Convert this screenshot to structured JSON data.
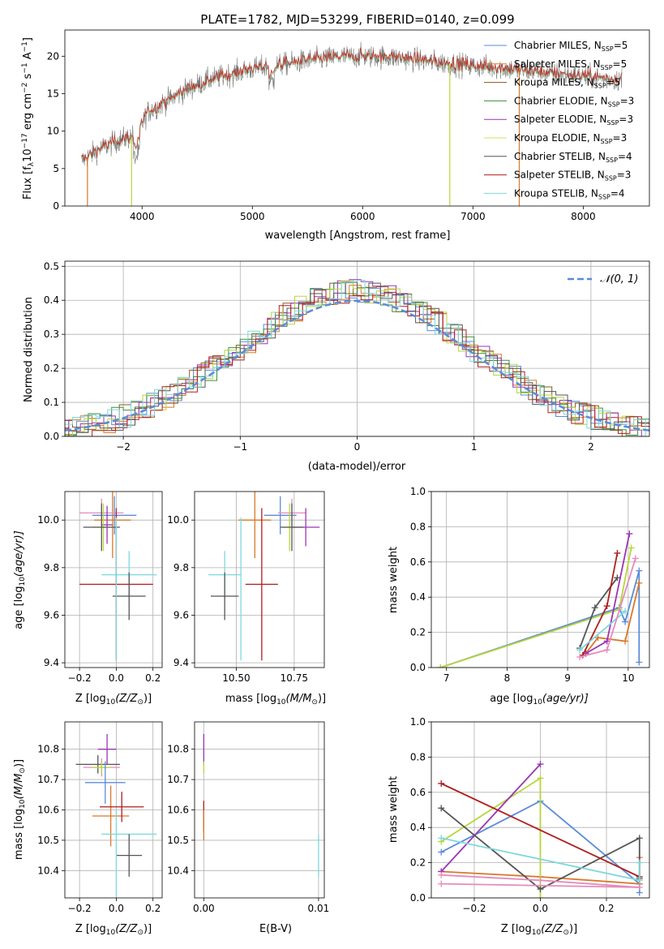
{
  "colors": {
    "chabrier_miles": "#5b8bd9",
    "salpeter_miles": "#d9782a",
    "kroupa_miles": "#8a5a1c",
    "chabrier_elodie": "#3c8f3c",
    "salpeter_elodie": "#9b35b5",
    "kroupa_elodie": "#d6e05a",
    "chabrier_stelib": "#555555",
    "salpeter_stelib": "#b01e1e",
    "kroupa_stelib": "#7dd8dc",
    "pink": "#e58bbd",
    "lime": "#b8d63a",
    "normal_curve": "#5b8bd9"
  },
  "chart_data": [
    {
      "id": "spectrum",
      "type": "line",
      "title": "PLATE=1782, MJD=53299, FIBERID=0140, z=0.099",
      "xlabel": "wavelength [Angstrom, rest frame]",
      "ylabel": "Flux [f",
      "ylabel_sub": "λ",
      "ylabel_rest": "10",
      "ylabel_exp1": "−17",
      "ylabel_mid": " erg cm",
      "ylabel_exp2": "−2",
      "ylabel_mid2": " s",
      "ylabel_exp3": "−1",
      "ylabel_end": " A",
      "ylabel_exp4": "−1",
      "ylabel_close": "]",
      "xlim": [
        3300,
        8600
      ],
      "ylim": [
        0,
        23.5
      ],
      "xticks": [
        4000,
        5000,
        6000,
        7000,
        8000
      ],
      "xticklabels": [
        "4000",
        "5000",
        "6000",
        "7000",
        "8000"
      ],
      "yticks": [
        0,
        5,
        10,
        15,
        20
      ],
      "yticklabels": [
        "0",
        "5",
        "10",
        "15",
        "20"
      ],
      "continuum": [
        [
          3450,
          6.0
        ],
        [
          3600,
          7.5
        ],
        [
          3800,
          8.8
        ],
        [
          3950,
          9.5
        ],
        [
          4050,
          12.5
        ],
        [
          4200,
          13.8
        ],
        [
          4400,
          15.5
        ],
        [
          4600,
          16.8
        ],
        [
          4800,
          17.6
        ],
        [
          5000,
          18.3
        ],
        [
          5200,
          18.7
        ],
        [
          5400,
          19.2
        ],
        [
          5600,
          19.6
        ],
        [
          5800,
          19.9
        ],
        [
          6000,
          20.0
        ],
        [
          6200,
          19.9
        ],
        [
          6400,
          19.7
        ],
        [
          6600,
          19.3
        ],
        [
          6800,
          19.0
        ],
        [
          7000,
          18.7
        ],
        [
          7200,
          18.5
        ],
        [
          7400,
          18.2
        ],
        [
          7600,
          17.9
        ],
        [
          7800,
          17.6
        ],
        [
          8000,
          17.3
        ],
        [
          8200,
          17.0
        ],
        [
          8350,
          16.9
        ]
      ],
      "legend": [
        {
          "label": "Chabrier MILES, N",
          "sub": "SSP",
          "val": "=5",
          "color": "#5b8bd9"
        },
        {
          "label": "Salpeter MILES, N",
          "sub": "SSP",
          "val": "=5",
          "color": "#d9782a"
        },
        {
          "label": "Kroupa MILES, N",
          "sub": "SSP",
          "val": "=5",
          "color": "#8a5a1c"
        },
        {
          "label": "Chabrier ELODIE, N",
          "sub": "SSP",
          "val": "=3",
          "color": "#3c8f3c"
        },
        {
          "label": "Salpeter ELODIE, N",
          "sub": "SSP",
          "val": "=3",
          "color": "#9b35b5"
        },
        {
          "label": "Kroupa ELODIE, N",
          "sub": "SSP",
          "val": "=3",
          "color": "#d6e05a"
        },
        {
          "label": "Chabrier STELIB, N",
          "sub": "SSP",
          "val": "=4",
          "color": "#555555"
        },
        {
          "label": "Salpeter STELIB, N",
          "sub": "SSP",
          "val": "=3",
          "color": "#b01e1e"
        },
        {
          "label": "Kroupa STELIB, N",
          "sub": "SSP",
          "val": "=4",
          "color": "#7dd8dc"
        }
      ]
    },
    {
      "id": "residuals",
      "type": "area",
      "xlabel": "(data-model)/error",
      "ylabel": "Normed distribution",
      "xlim": [
        -2.5,
        2.5
      ],
      "ylim": [
        0,
        0.515
      ],
      "xticks": [
        -2,
        -1,
        0,
        1,
        2
      ],
      "xticklabels": [
        "−2",
        "−1",
        "0",
        "1",
        "2"
      ],
      "yticks": [
        0.0,
        0.1,
        0.2,
        0.3,
        0.4,
        0.5
      ],
      "yticklabels": [
        "0.0",
        "0.1",
        "0.2",
        "0.3",
        "0.4",
        "0.5"
      ],
      "bin_width": 0.1,
      "legend_label": "𝒩(0, 1)",
      "grid": true
    },
    {
      "id": "age_vs_Z",
      "type": "scatter",
      "xlabel": "Z [log",
      "xlabel_sub": "10",
      "xlabel_rest": "(Z/Z",
      "xlabel_sub2": "⊙",
      "xlabel_end": ")]",
      "ylabel": "age  [log",
      "ylabel_sub": "10",
      "ylabel_rest": "(age/yr)]",
      "xlim": [
        -0.28,
        0.25
      ],
      "ylim": [
        9.38,
        10.12
      ],
      "xticks": [
        -0.2,
        0.0,
        0.2
      ],
      "xticklabels": [
        "−0.2",
        "0.0",
        "0.2"
      ],
      "yticks": [
        9.4,
        9.6,
        9.8,
        10.0
      ],
      "yticklabels": [
        "9.4",
        "9.6",
        "9.8",
        "10.0"
      ],
      "points": [
        {
          "x": -0.01,
          "y": 10.02,
          "xerr": 0.12,
          "yerr": 0.08,
          "color": "#5b8bd9"
        },
        {
          "x": -0.02,
          "y": 10.0,
          "xerr": 0.1,
          "yerr": 0.16,
          "color": "#d9782a"
        },
        {
          "x": -0.08,
          "y": 10.03,
          "xerr": 0.12,
          "yerr": 0.06,
          "color": "#e58bbd"
        },
        {
          "x": -0.05,
          "y": 9.98,
          "xerr": 0.03,
          "yerr": 0.08,
          "color": "#9b35b5"
        },
        {
          "x": -0.07,
          "y": 9.97,
          "xerr": 0.06,
          "yerr": 0.1,
          "color": "#b8d63a"
        },
        {
          "x": -0.08,
          "y": 9.97,
          "xerr": 0.1,
          "yerr": 0.1,
          "color": "#555555"
        },
        {
          "x": 0.07,
          "y": 9.77,
          "xerr": 0.15,
          "yerr": 0.1,
          "color": "#7dd8dc"
        },
        {
          "x": 0.0,
          "y": 9.73,
          "xerr": 0.2,
          "yerr": 0.32,
          "color": "#b01e1e"
        },
        {
          "x": 0.07,
          "y": 9.68,
          "xerr": 0.09,
          "yerr": 0.1,
          "color": "#555555"
        },
        {
          "x": 0.0,
          "y": 9.71,
          "xerr": 0.0,
          "yerr": 0.3,
          "color": "#7dd8dc"
        }
      ]
    },
    {
      "id": "age_vs_mass",
      "type": "scatter",
      "xlabel": "mass [log",
      "xlabel_sub": "10",
      "xlabel_rest": "(M/M",
      "xlabel_sub2": "⊙",
      "xlabel_end": ")]",
      "xlim": [
        10.32,
        10.88
      ],
      "ylim": [
        9.38,
        10.12
      ],
      "xticks": [
        10.5,
        10.75
      ],
      "xticklabels": [
        "10.50",
        "10.75"
      ],
      "yticks": [
        9.4,
        9.6,
        9.8,
        10.0
      ],
      "yticklabels": [
        "9.4",
        "9.6",
        "9.8",
        "10.0"
      ],
      "points": [
        {
          "x": 10.69,
          "y": 10.02,
          "xerr": 0.07,
          "yerr": 0.08,
          "color": "#5b8bd9"
        },
        {
          "x": 10.58,
          "y": 10.0,
          "xerr": 0.07,
          "yerr": 0.16,
          "color": "#d9782a"
        },
        {
          "x": 10.74,
          "y": 10.03,
          "xerr": 0.06,
          "yerr": 0.06,
          "color": "#e58bbd"
        },
        {
          "x": 10.8,
          "y": 9.97,
          "xerr": 0.06,
          "yerr": 0.08,
          "color": "#9b35b5"
        },
        {
          "x": 10.73,
          "y": 9.97,
          "xerr": 0.03,
          "yerr": 0.1,
          "color": "#b8d63a"
        },
        {
          "x": 10.74,
          "y": 9.97,
          "xerr": 0.05,
          "yerr": 0.1,
          "color": "#555555"
        },
        {
          "x": 10.45,
          "y": 9.77,
          "xerr": 0.07,
          "yerr": 0.1,
          "color": "#7dd8dc"
        },
        {
          "x": 10.61,
          "y": 9.73,
          "xerr": 0.07,
          "yerr": 0.32,
          "color": "#b01e1e"
        },
        {
          "x": 10.45,
          "y": 9.68,
          "xerr": 0.06,
          "yerr": 0.1,
          "color": "#555555"
        },
        {
          "x": 10.52,
          "y": 9.71,
          "xerr": 0.0,
          "yerr": 0.3,
          "color": "#7dd8dc"
        }
      ]
    },
    {
      "id": "weight_vs_age",
      "type": "line",
      "xlabel": "age  [log",
      "xlabel_sub": "10",
      "xlabel_rest": "(age/yr)]",
      "ylabel": "mass weight",
      "xlim": [
        6.75,
        10.35
      ],
      "ylim": [
        0,
        1.0
      ],
      "xticks": [
        7,
        8,
        9,
        10
      ],
      "xticklabels": [
        "7",
        "8",
        "9",
        "10"
      ],
      "yticks": [
        0.0,
        0.2,
        0.4,
        0.6,
        0.8,
        1.0
      ],
      "yticklabels": [
        "0.0",
        "0.2",
        "0.4",
        "0.6",
        "0.8",
        "1.0"
      ],
      "series": [
        {
          "color": "#5b8bd9",
          "x": [
            6.9,
            9.85,
            9.95,
            10.18,
            10.18
          ],
          "y": [
            0.0,
            0.34,
            0.26,
            0.55,
            0.03
          ]
        },
        {
          "color": "#d9782a",
          "x": [
            9.3,
            9.5,
            9.95,
            10.18
          ],
          "y": [
            0.08,
            0.17,
            0.15,
            0.48
          ]
        },
        {
          "color": "#b8d63a",
          "x": [
            6.9,
            9.85,
            10.05
          ],
          "y": [
            0.0,
            0.33,
            0.68
          ]
        },
        {
          "color": "#9b35b5",
          "x": [
            9.3,
            9.65,
            10.02
          ],
          "y": [
            0.08,
            0.15,
            0.76
          ]
        },
        {
          "color": "#555555",
          "x": [
            9.2,
            9.45,
            9.82
          ],
          "y": [
            0.11,
            0.34,
            0.51
          ]
        },
        {
          "color": "#b01e1e",
          "x": [
            9.25,
            9.65,
            9.82
          ],
          "y": [
            0.07,
            0.35,
            0.65
          ]
        },
        {
          "color": "#7dd8dc",
          "x": [
            9.2,
            9.95
          ],
          "y": [
            0.1,
            0.32
          ]
        },
        {
          "color": "#e58bbd",
          "x": [
            9.2,
            9.65,
            10.12
          ],
          "y": [
            0.06,
            0.1,
            0.62
          ]
        }
      ]
    },
    {
      "id": "mass_vs_Z",
      "type": "scatter",
      "xlabel": "Z [log",
      "xlabel_sub": "10",
      "xlabel_rest": "(Z/Z",
      "xlabel_sub2": "⊙",
      "xlabel_end": ")]",
      "ylabel": "mass [log",
      "ylabel_sub": "10",
      "ylabel_rest": "(M/M",
      "ylabel_sub2": "⊙",
      "ylabel_end": ")]",
      "xlim": [
        -0.28,
        0.25
      ],
      "ylim": [
        10.31,
        10.89
      ],
      "xticks": [
        -0.2,
        0.0,
        0.2
      ],
      "xticklabels": [
        "−0.2",
        "0.0",
        "0.2"
      ],
      "yticks": [
        10.4,
        10.5,
        10.6,
        10.7,
        10.8
      ],
      "yticklabels": [
        "10.4",
        "10.5",
        "10.6",
        "10.7",
        "10.8"
      ],
      "points": [
        {
          "x": -0.05,
          "y": 10.8,
          "xerr": 0.05,
          "yerr": 0.05,
          "color": "#9b35b5"
        },
        {
          "x": -0.1,
          "y": 10.75,
          "xerr": 0.12,
          "yerr": 0.03,
          "color": "#555555"
        },
        {
          "x": -0.08,
          "y": 10.74,
          "xerr": 0.1,
          "yerr": 0.03,
          "color": "#e58bbd"
        },
        {
          "x": -0.08,
          "y": 10.74,
          "xerr": 0.05,
          "yerr": 0.02,
          "color": "#b8d63a"
        },
        {
          "x": -0.06,
          "y": 10.69,
          "xerr": 0.11,
          "yerr": 0.07,
          "color": "#5b8bd9"
        },
        {
          "x": -0.03,
          "y": 10.58,
          "xerr": 0.1,
          "yerr": 0.1,
          "color": "#d9782a"
        },
        {
          "x": 0.03,
          "y": 10.61,
          "xerr": 0.12,
          "yerr": 0.05,
          "color": "#b01e1e"
        },
        {
          "x": 0.07,
          "y": 10.52,
          "xerr": 0.15,
          "yerr": 0.0,
          "color": "#7dd8dc"
        },
        {
          "x": 0.07,
          "y": 10.45,
          "xerr": 0.07,
          "yerr": 0.07,
          "color": "#555555"
        },
        {
          "x": 0.0,
          "y": 10.45,
          "xerr": 0.0,
          "yerr": 0.15,
          "color": "#7dd8dc"
        }
      ]
    },
    {
      "id": "mass_vs_ebv",
      "type": "scatter",
      "xlabel": "E(B-V)",
      "xlim": [
        -0.0008,
        0.0105
      ],
      "ylim": [
        10.31,
        10.89
      ],
      "xticks": [
        0.0,
        0.01
      ],
      "xticklabels": [
        "0.00",
        "0.01"
      ],
      "yticks": [
        10.4,
        10.5,
        10.6,
        10.7,
        10.8
      ],
      "yticklabels": [
        "10.4",
        "10.5",
        "10.6",
        "10.7",
        "10.8"
      ],
      "points": [
        {
          "x": 0.0,
          "y": 10.8,
          "yerr": 0.05,
          "color": "#9b35b5"
        },
        {
          "x": 0.0,
          "y": 10.74,
          "yerr": 0.02,
          "color": "#b8d63a"
        },
        {
          "x": 0.0,
          "y": 10.58,
          "yerr": 0.05,
          "color": "#b01e1e"
        },
        {
          "x": 0.0,
          "y": 10.55,
          "yerr": 0.05,
          "color": "#d9782a"
        },
        {
          "x": 0.01,
          "y": 10.45,
          "yerr": 0.07,
          "color": "#7dd8dc"
        }
      ]
    },
    {
      "id": "weight_vs_Z",
      "type": "line",
      "xlabel": "Z [log",
      "xlabel_sub": "10",
      "xlabel_rest": "(Z/Z",
      "xlabel_sub2": "⊙",
      "xlabel_end": ")]",
      "ylabel": "mass weight",
      "xlim": [
        -0.33,
        0.33
      ],
      "ylim": [
        0,
        1.0
      ],
      "xticks": [
        -0.2,
        0.0,
        0.2
      ],
      "xticklabels": [
        "−0.2",
        "0.0",
        "0.2"
      ],
      "yticks": [
        0.0,
        0.2,
        0.4,
        0.6,
        0.8,
        1.0
      ],
      "yticklabels": [
        "0.0",
        "0.2",
        "0.4",
        "0.6",
        "0.8",
        "1.0"
      ],
      "series": [
        {
          "color": "#5b8bd9",
          "x": [
            -0.3,
            0.0,
            0.3,
            0.3
          ],
          "y": [
            0.26,
            0.55,
            0.08,
            0.03
          ]
        },
        {
          "color": "#d9782a",
          "x": [
            -0.3,
            0.0,
            0.3,
            0.3
          ],
          "y": [
            0.15,
            0.12,
            0.08,
            0.23
          ]
        },
        {
          "color": "#b8d63a",
          "x": [
            -0.3,
            0.0,
            0.0
          ],
          "y": [
            0.32,
            0.68,
            0.0
          ]
        },
        {
          "color": "#9b35b5",
          "x": [
            -0.3,
            0.0
          ],
          "y": [
            0.15,
            0.76
          ]
        },
        {
          "color": "#555555",
          "x": [
            -0.3,
            0.0,
            0.3,
            0.3
          ],
          "y": [
            0.51,
            0.05,
            0.34,
            0.11
          ]
        },
        {
          "color": "#b01e1e",
          "x": [
            -0.3,
            0.3
          ],
          "y": [
            0.65,
            0.12
          ]
        },
        {
          "color": "#7dd8dc",
          "x": [
            -0.3,
            0.3,
            0.3
          ],
          "y": [
            0.34,
            0.1,
            0.2
          ]
        },
        {
          "color": "#e58bbd",
          "x": [
            -0.3,
            0.0,
            0.3,
            -0.3
          ],
          "y": [
            0.13,
            0.1,
            0.06,
            0.08
          ]
        }
      ]
    }
  ]
}
